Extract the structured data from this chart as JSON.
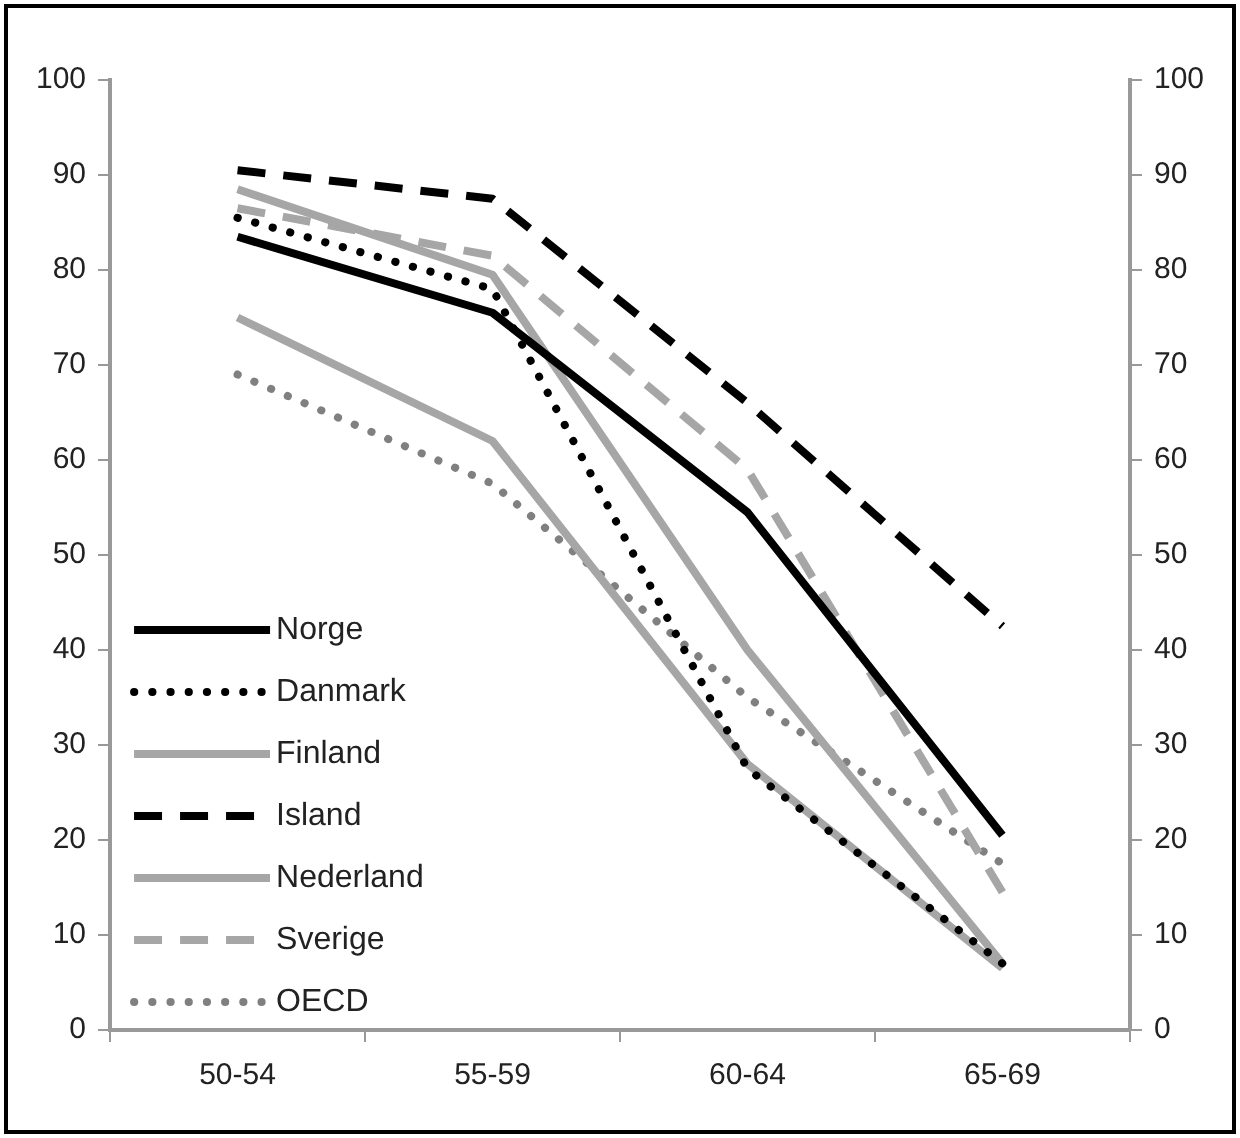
{
  "chart_data": {
    "type": "line",
    "categories": [
      "50-54",
      "55-59",
      "60-64",
      "65-69"
    ],
    "series": [
      {
        "name": "Norge",
        "color": "#000000",
        "line_style": "solid",
        "values": [
          83.5,
          75.5,
          54.5,
          20.5
        ]
      },
      {
        "name": "Danmark",
        "color": "#000000",
        "line_style": "dotted",
        "values": [
          85.5,
          78,
          27.5,
          7
        ]
      },
      {
        "name": "Finland",
        "color": "#a6a6a6",
        "line_style": "solid",
        "values": [
          88.5,
          79.5,
          40,
          7
        ]
      },
      {
        "name": "Island",
        "color": "#000000",
        "line_style": "dashed",
        "values": [
          90.5,
          87.5,
          66,
          42.5
        ]
      },
      {
        "name": "Nederland",
        "color": "#a6a6a6",
        "line_style": "solid",
        "values": [
          75,
          62,
          28,
          6.5
        ]
      },
      {
        "name": "Sverige",
        "color": "#a6a6a6",
        "line_style": "dashed",
        "values": [
          86.5,
          81.5,
          59,
          14.5
        ]
      },
      {
        "name": "OECD",
        "color": "#808080",
        "line_style": "dotted",
        "values": [
          69,
          57.5,
          35,
          17.5
        ]
      }
    ],
    "ylim": [
      0,
      100
    ],
    "yticks": [
      0,
      10,
      20,
      30,
      40,
      50,
      60,
      70,
      80,
      90,
      100
    ],
    "y2lim": [
      0,
      100
    ],
    "y2ticks": [
      0,
      10,
      20,
      30,
      40,
      50,
      60,
      70,
      80,
      90,
      100
    ],
    "grid": false,
    "legend": "bottom left",
    "marker": "none"
  }
}
